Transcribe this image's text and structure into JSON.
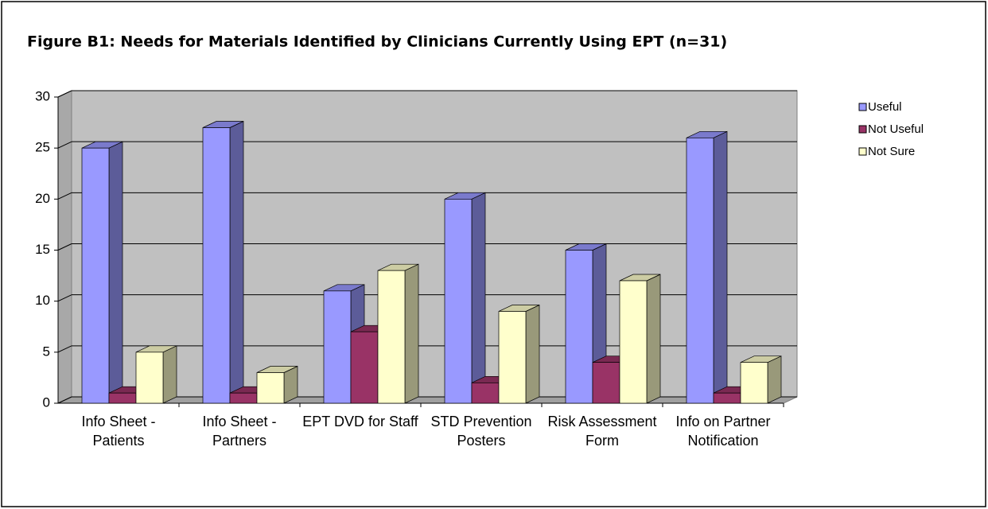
{
  "chart_data": {
    "type": "bar3d",
    "title": "Figure B1: Needs for Materials Identified by Clinicians Currently Using EPT (n=31)",
    "categories": [
      "Info Sheet - Patients",
      "Info Sheet - Partners",
      "EPT DVD for Staff",
      "STD Prevention Posters",
      "Risk Assessment Form",
      "Info on Partner Notification"
    ],
    "series": [
      {
        "name": "Useful",
        "color": "#9999ff",
        "values": [
          25,
          27,
          11,
          20,
          15,
          26
        ]
      },
      {
        "name": "Not Useful",
        "color": "#993366",
        "values": [
          1,
          1,
          7,
          2,
          4,
          1
        ]
      },
      {
        "name": "Not Sure",
        "color": "#ffffcc",
        "values": [
          5,
          3,
          13,
          9,
          12,
          4
        ]
      }
    ],
    "ylim": [
      0,
      30
    ],
    "yticks": [
      0,
      5,
      10,
      15,
      20,
      25,
      30
    ],
    "grid": true,
    "legend": "right"
  }
}
